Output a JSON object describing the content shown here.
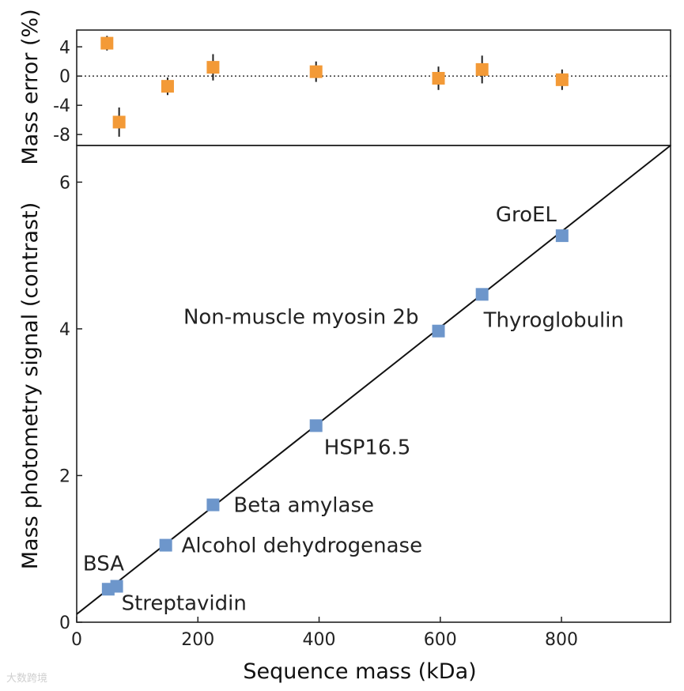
{
  "chart_data": [
    {
      "type": "scatter",
      "panel": "top",
      "ylabel": "Mass error (%)",
      "xlim": [
        0,
        980
      ],
      "ylim": [
        -9.5,
        6.3
      ],
      "yticks": [
        4,
        0,
        -4,
        -8
      ],
      "ytick_labels": [
        "4",
        "0",
        "-4",
        "-8"
      ],
      "reference_line": 0,
      "marker_color": "#F39A37",
      "points": [
        {
          "x": 50,
          "y": 4.5,
          "err": 1.0
        },
        {
          "x": 70,
          "y": -6.3,
          "err": 2.0
        },
        {
          "x": 150,
          "y": -1.4,
          "err": 1.2
        },
        {
          "x": 225,
          "y": 1.2,
          "err": 1.8
        },
        {
          "x": 395,
          "y": 0.6,
          "err": 1.4
        },
        {
          "x": 597,
          "y": -0.3,
          "err": 1.6
        },
        {
          "x": 669,
          "y": 0.9,
          "err": 1.9
        },
        {
          "x": 801,
          "y": -0.5,
          "err": 1.4
        }
      ]
    },
    {
      "type": "scatter",
      "panel": "bottom",
      "xlabel": "Sequence mass (kDa)",
      "ylabel": "Mass photometry signal  (contrast)",
      "xlim": [
        0,
        980
      ],
      "ylim": [
        0,
        6.5
      ],
      "xticks": [
        0,
        200,
        400,
        600,
        800
      ],
      "xtick_labels": [
        "0",
        "200",
        "400",
        "600",
        "800"
      ],
      "yticks": [
        0,
        2,
        4,
        6
      ],
      "ytick_labels": [
        "0",
        "2",
        "4",
        "6"
      ],
      "marker_color": "#6D96CB",
      "fit_line": {
        "x": [
          0,
          980
        ],
        "y": [
          0.11,
          6.5
        ]
      },
      "points": [
        {
          "x": 52,
          "y": 0.45,
          "label": "BSA"
        },
        {
          "x": 66,
          "y": 0.49,
          "label": "Streptavidin"
        },
        {
          "x": 147,
          "y": 1.05,
          "label": "Alcohol dehydrogenase"
        },
        {
          "x": 225,
          "y": 1.6,
          "label": "Beta amylase"
        },
        {
          "x": 395,
          "y": 2.68,
          "label": "HSP16.5"
        },
        {
          "x": 597,
          "y": 3.97,
          "label": "Non-muscle myosin 2b"
        },
        {
          "x": 669,
          "y": 4.47,
          "label": "Thyroglobulin"
        },
        {
          "x": 801,
          "y": 5.27,
          "label": "GroEL"
        }
      ]
    }
  ],
  "watermark": "大数跨境"
}
